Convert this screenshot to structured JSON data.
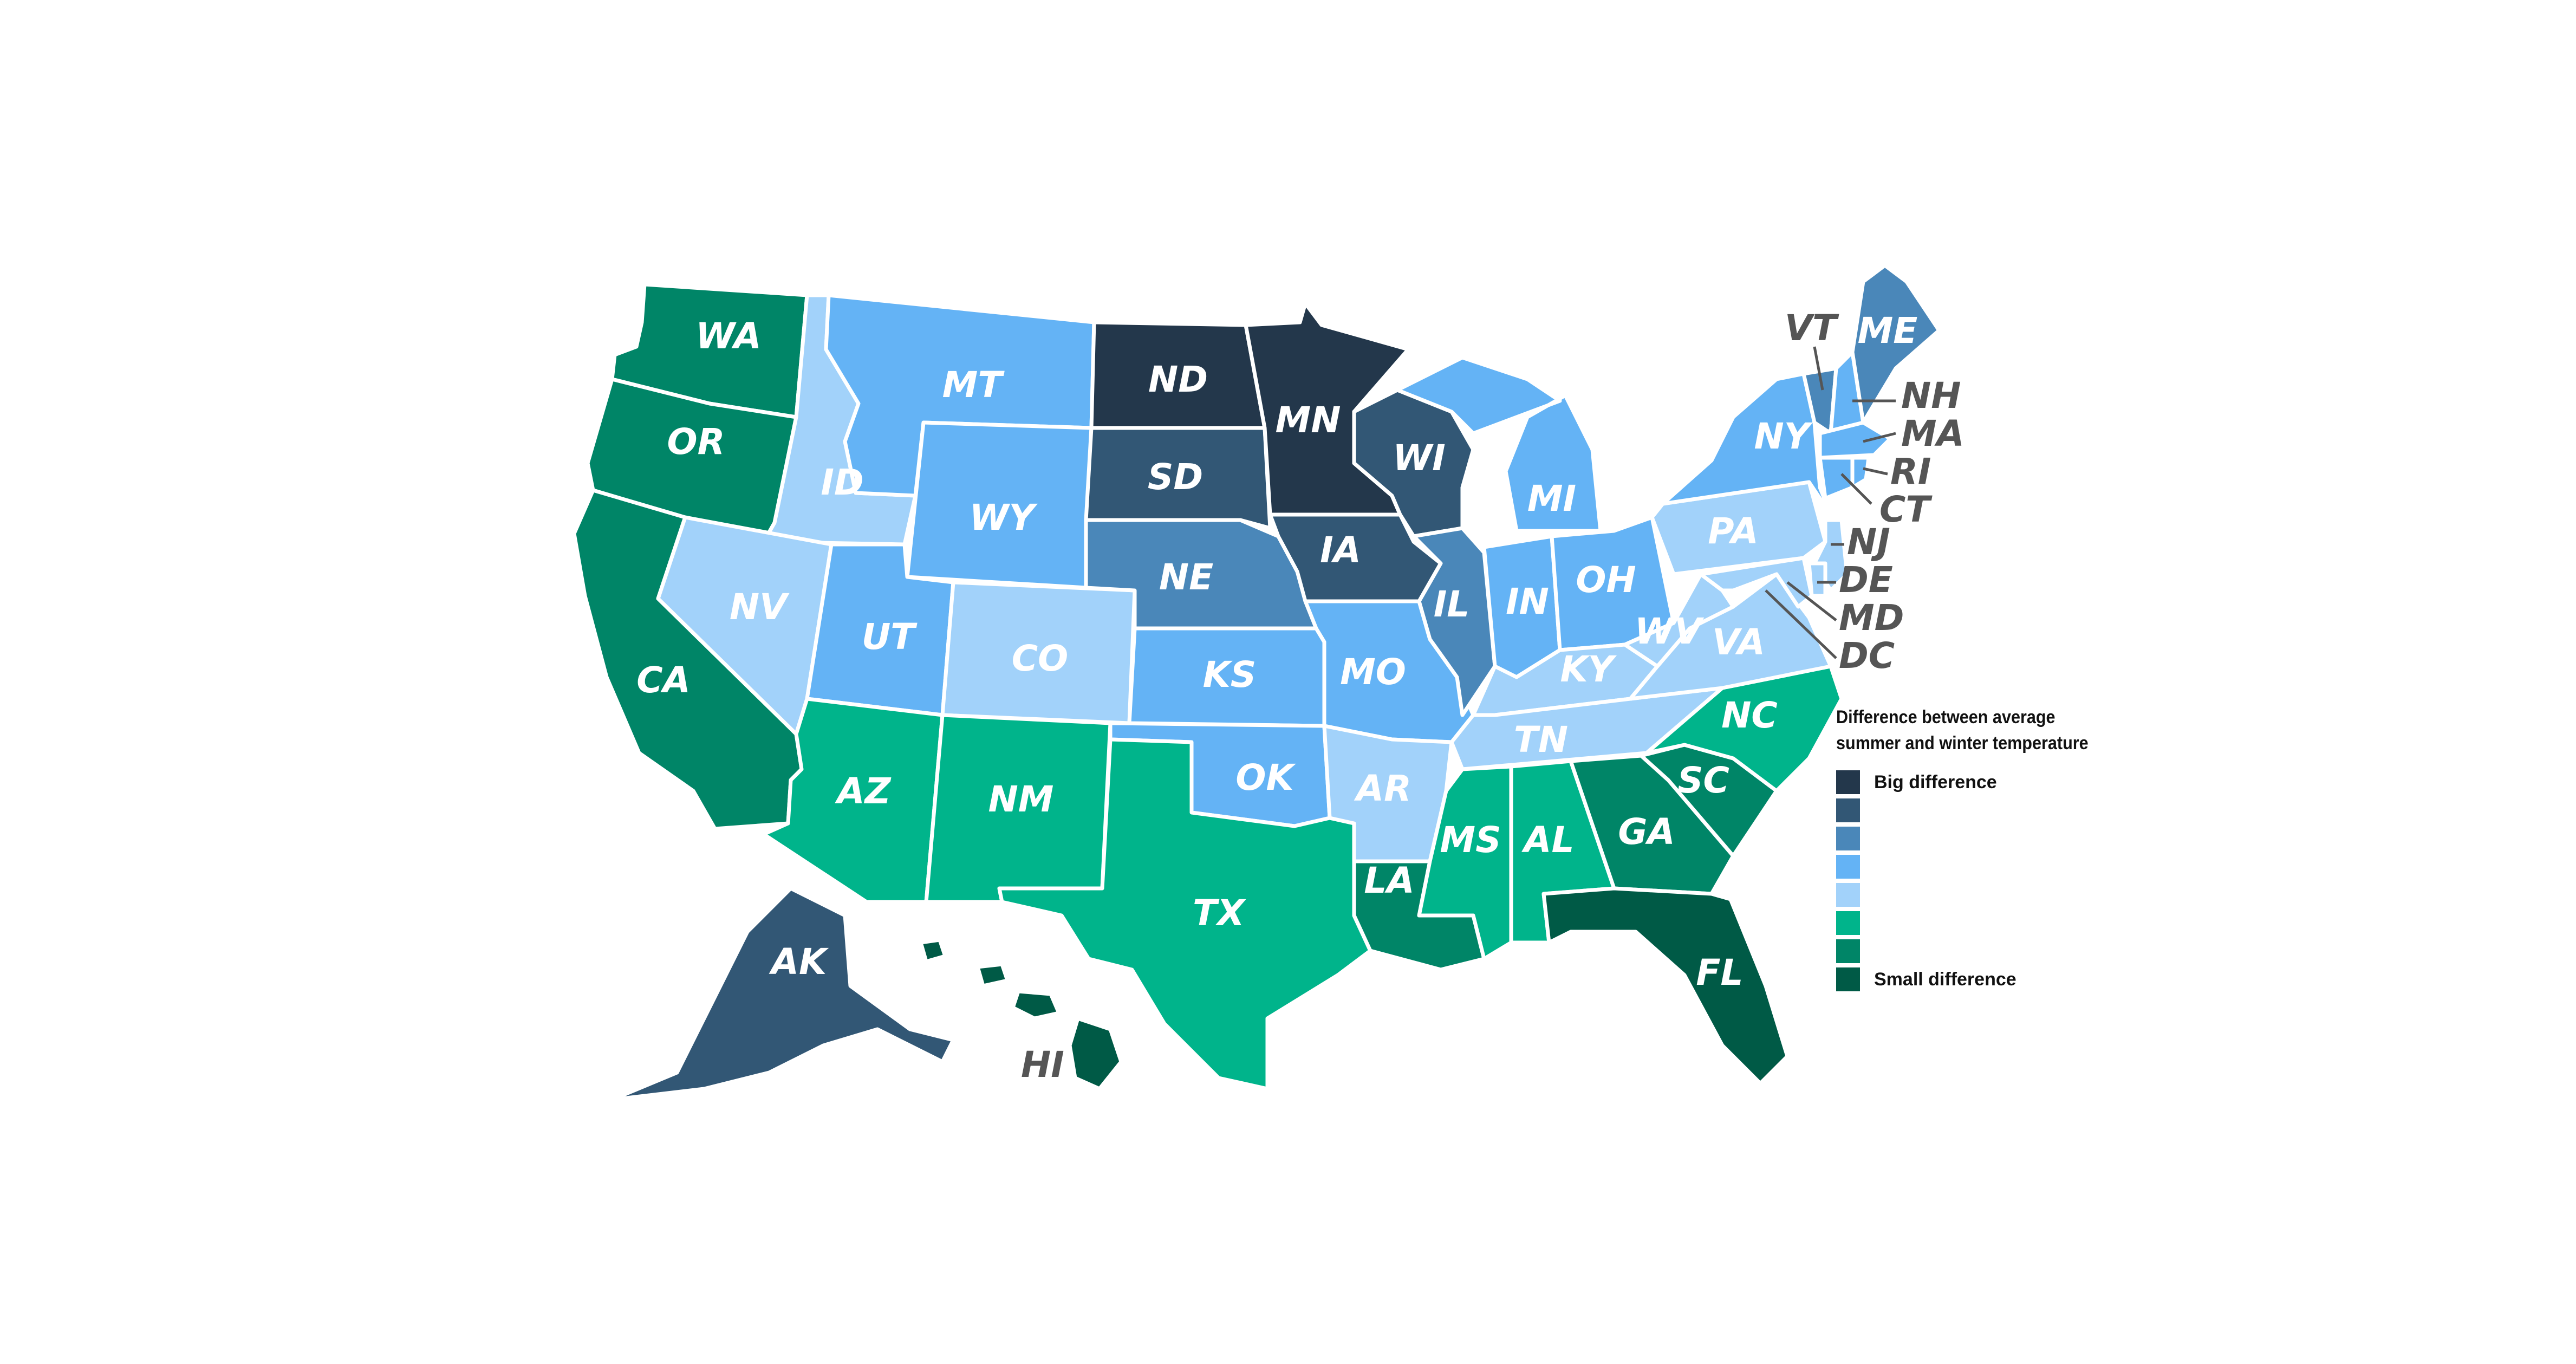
{
  "legend": {
    "title_line1": "Difference between average",
    "title_line2": "summer and winter temperature",
    "items": [
      {
        "color": "#23374b",
        "label": "Big difference"
      },
      {
        "color": "#325775",
        "label": ""
      },
      {
        "color": "#4a87b9",
        "label": ""
      },
      {
        "color": "#64b3f5",
        "label": ""
      },
      {
        "color": "#a2d2fa",
        "label": ""
      },
      {
        "color": "#00b48b",
        "label": ""
      },
      {
        "color": "#008567",
        "label": ""
      },
      {
        "color": "#005a46",
        "label": "Small difference"
      }
    ]
  },
  "states": {
    "WA": {
      "label": "WA",
      "level": 7
    },
    "OR": {
      "label": "OR",
      "level": 7
    },
    "CA": {
      "label": "CA",
      "level": 7
    },
    "ID": {
      "label": "ID",
      "level": 5
    },
    "NV": {
      "label": "NV",
      "level": 5
    },
    "MT": {
      "label": "MT",
      "level": 4
    },
    "WY": {
      "label": "WY",
      "level": 4
    },
    "UT": {
      "label": "UT",
      "level": 4
    },
    "CO": {
      "label": "CO",
      "level": 5
    },
    "AZ": {
      "label": "AZ",
      "level": 6
    },
    "NM": {
      "label": "NM",
      "level": 6
    },
    "ND": {
      "label": "ND",
      "level": 1
    },
    "SD": {
      "label": "SD",
      "level": 2
    },
    "NE": {
      "label": "NE",
      "level": 3
    },
    "KS": {
      "label": "KS",
      "level": 4
    },
    "OK": {
      "label": "OK",
      "level": 4
    },
    "TX": {
      "label": "TX",
      "level": 6
    },
    "MN": {
      "label": "MN",
      "level": 1
    },
    "IA": {
      "label": "IA",
      "level": 2
    },
    "MO": {
      "label": "MO",
      "level": 4
    },
    "AR": {
      "label": "AR",
      "level": 5
    },
    "LA": {
      "label": "LA",
      "level": 7
    },
    "WI": {
      "label": "WI",
      "level": 2
    },
    "IL": {
      "label": "IL",
      "level": 3
    },
    "MI": {
      "label": "MI",
      "level": 4
    },
    "IN": {
      "label": "IN",
      "level": 4
    },
    "OH": {
      "label": "OH",
      "level": 4
    },
    "KY": {
      "label": "KY",
      "level": 5
    },
    "TN": {
      "label": "TN",
      "level": 5
    },
    "MS": {
      "label": "MS",
      "level": 6
    },
    "AL": {
      "label": "AL",
      "level": 6
    },
    "GA": {
      "label": "GA",
      "level": 7
    },
    "FL": {
      "label": "FL",
      "level": 8
    },
    "SC": {
      "label": "SC",
      "level": 7
    },
    "NC": {
      "label": "NC",
      "level": 6
    },
    "VA": {
      "label": "VA",
      "level": 5
    },
    "WV": {
      "label": "WV",
      "level": 5
    },
    "PA": {
      "label": "PA",
      "level": 5
    },
    "NY": {
      "label": "NY",
      "level": 4
    },
    "VT": {
      "label": "VT",
      "level": 3
    },
    "ME": {
      "label": "ME",
      "level": 3
    },
    "NH": {
      "label": "NH",
      "level": 4
    },
    "MA": {
      "label": "MA",
      "level": 4
    },
    "RI": {
      "label": "RI",
      "level": 4
    },
    "CT": {
      "label": "CT",
      "level": 4
    },
    "NJ": {
      "label": "NJ",
      "level": 5
    },
    "DE": {
      "label": "DE",
      "level": 5
    },
    "MD": {
      "label": "MD",
      "level": 5
    },
    "DC": {
      "label": "DC",
      "level": 5
    },
    "AK": {
      "label": "AK",
      "level": 2
    },
    "HI": {
      "label": "HI",
      "level": 8
    }
  }
}
